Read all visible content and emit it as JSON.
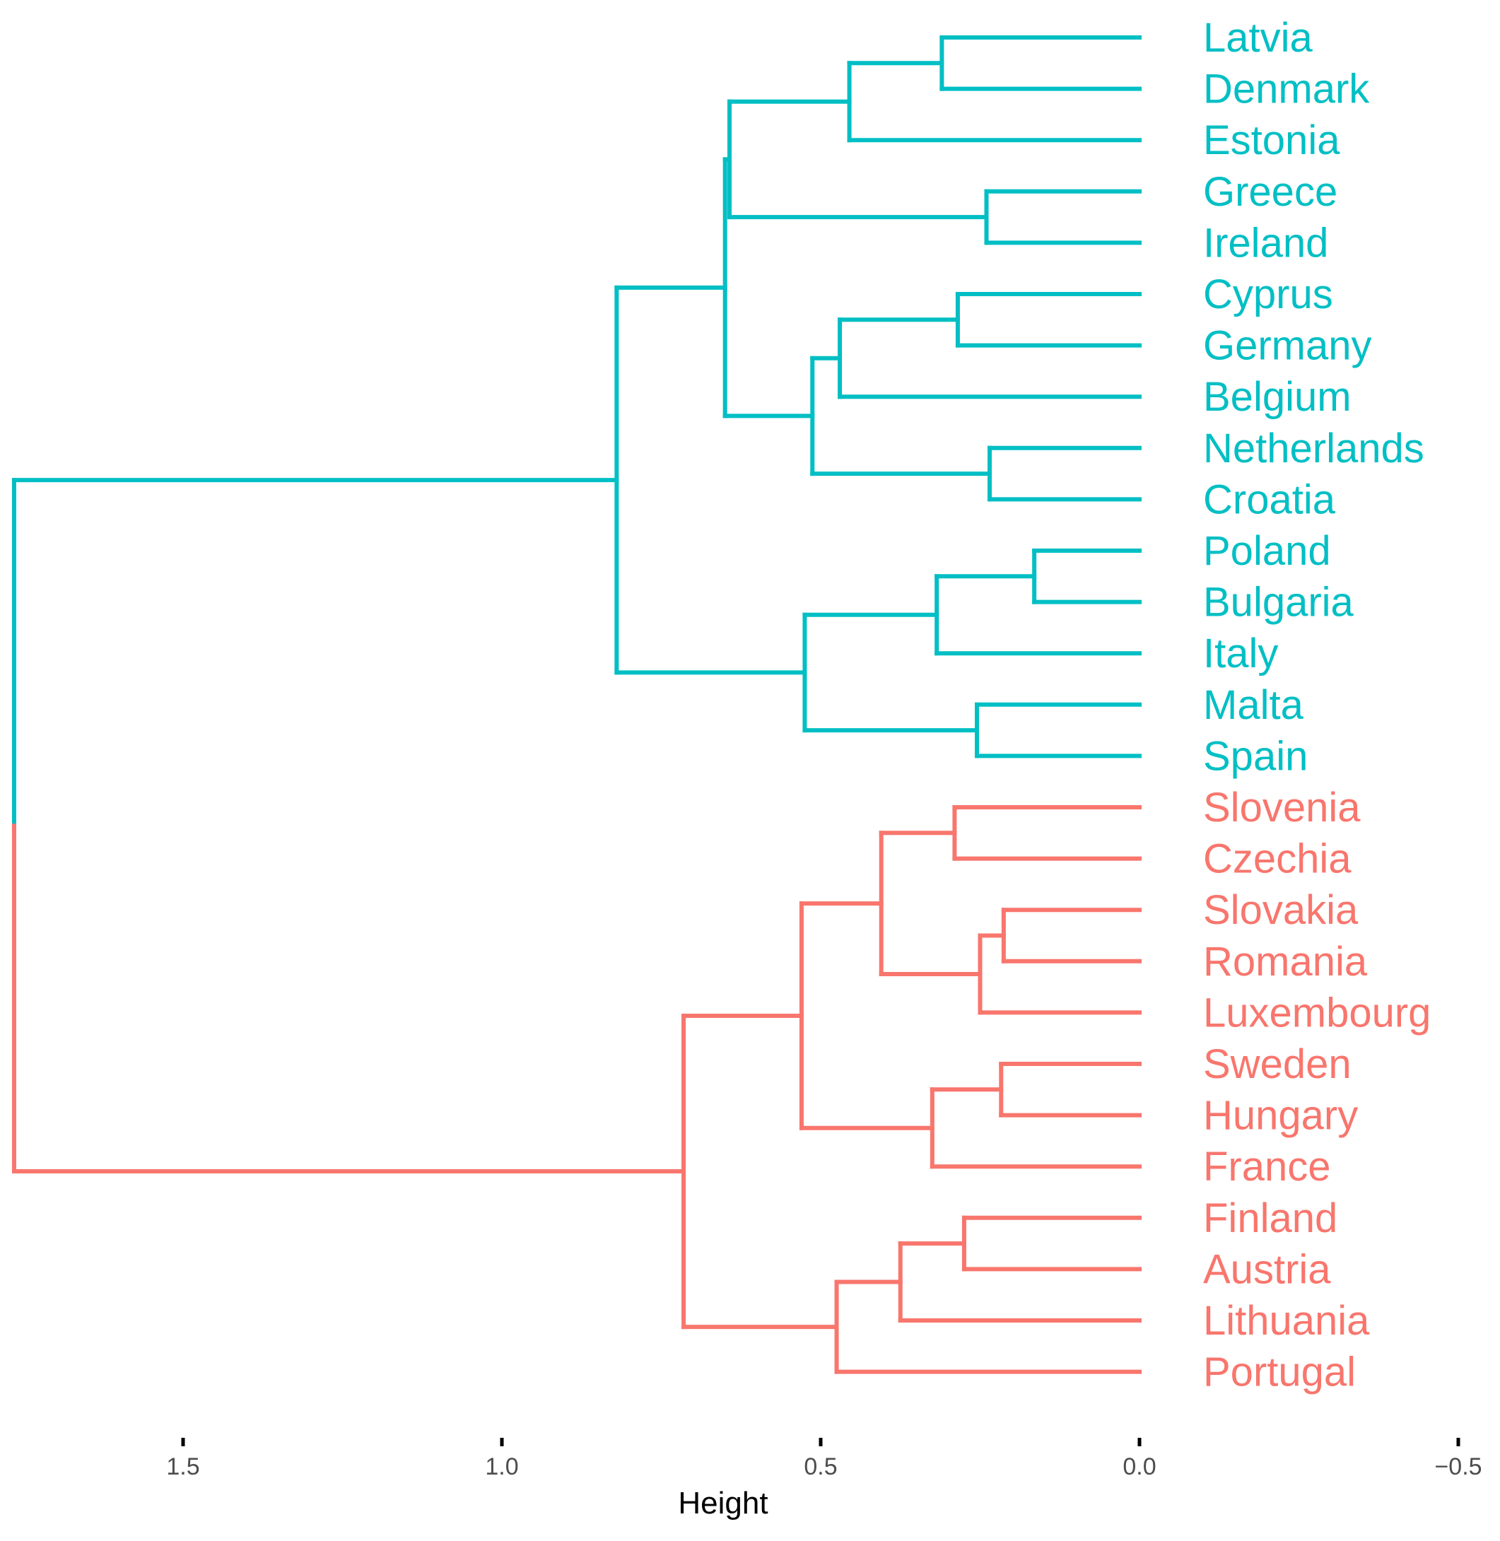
{
  "chart_data": {
    "type": "dendrogram",
    "title": "",
    "xlabel": "Height",
    "ylabel": "",
    "xlim": [
      1.78,
      -0.5
    ],
    "x_ticks": [
      1.5,
      1.0,
      0.5,
      0.0,
      -0.5
    ],
    "x_tick_labels": [
      "1.5",
      "1.0",
      "0.5",
      "0.0",
      "−0.5"
    ],
    "grid": false,
    "cluster_colors": [
      "#00bfc4",
      "#f8766d"
    ],
    "leaves": [
      {
        "label": "Latvia",
        "cluster": 0
      },
      {
        "label": "Denmark",
        "cluster": 0
      },
      {
        "label": "Estonia",
        "cluster": 0
      },
      {
        "label": "Greece",
        "cluster": 0
      },
      {
        "label": "Ireland",
        "cluster": 0
      },
      {
        "label": "Cyprus",
        "cluster": 0
      },
      {
        "label": "Germany",
        "cluster": 0
      },
      {
        "label": "Belgium",
        "cluster": 0
      },
      {
        "label": "Netherlands",
        "cluster": 0
      },
      {
        "label": "Croatia",
        "cluster": 0
      },
      {
        "label": "Poland",
        "cluster": 0
      },
      {
        "label": "Bulgaria",
        "cluster": 0
      },
      {
        "label": "Italy",
        "cluster": 0
      },
      {
        "label": "Malta",
        "cluster": 0
      },
      {
        "label": "Spain",
        "cluster": 0
      },
      {
        "label": "Slovenia",
        "cluster": 1
      },
      {
        "label": "Czechia",
        "cluster": 1
      },
      {
        "label": "Slovakia",
        "cluster": 1
      },
      {
        "label": "Romania",
        "cluster": 1
      },
      {
        "label": "Luxembourg",
        "cluster": 1
      },
      {
        "label": "Sweden",
        "cluster": 1
      },
      {
        "label": "Hungary",
        "cluster": 1
      },
      {
        "label": "France",
        "cluster": 1
      },
      {
        "label": "Finland",
        "cluster": 1
      },
      {
        "label": "Austria",
        "cluster": 1
      },
      {
        "label": "Lithuania",
        "cluster": 1
      },
      {
        "label": "Portugal",
        "cluster": 1
      }
    ],
    "merges": [
      {
        "id": "m1",
        "left": 0,
        "right": 1,
        "height": 0.31
      },
      {
        "id": "m2",
        "left": "m1",
        "right": 2,
        "height": 0.455
      },
      {
        "id": "m3",
        "left": 3,
        "right": 4,
        "height": 0.24
      },
      {
        "id": "m4",
        "left": "m2",
        "right": "m3",
        "height": 0.643
      },
      {
        "id": "m5",
        "left": 5,
        "right": 6,
        "height": 0.285
      },
      {
        "id": "m6",
        "left": "m5",
        "right": 7,
        "height": 0.47
      },
      {
        "id": "m7",
        "left": 8,
        "right": 9,
        "height": 0.235
      },
      {
        "id": "m8",
        "left": "m6",
        "right": "m7",
        "height": 0.513
      },
      {
        "id": "m9",
        "left": "m4",
        "right": "m8",
        "height": 0.65
      },
      {
        "id": "m10",
        "left": 10,
        "right": 11,
        "height": 0.165
      },
      {
        "id": "m11",
        "left": "m10",
        "right": 12,
        "height": 0.318
      },
      {
        "id": "m12",
        "left": 13,
        "right": 14,
        "height": 0.255
      },
      {
        "id": "m13",
        "left": "m11",
        "right": "m12",
        "height": 0.525
      },
      {
        "id": "m14",
        "left": "m9",
        "right": "m13",
        "height": 0.82
      },
      {
        "id": "m15",
        "left": 15,
        "right": 16,
        "height": 0.29
      },
      {
        "id": "m16",
        "left": 17,
        "right": 18,
        "height": 0.213
      },
      {
        "id": "m17",
        "left": "m16",
        "right": 19,
        "height": 0.25
      },
      {
        "id": "m18",
        "left": "m15",
        "right": "m17",
        "height": 0.405
      },
      {
        "id": "m19",
        "left": 20,
        "right": 21,
        "height": 0.217
      },
      {
        "id": "m20",
        "left": "m19",
        "right": 22,
        "height": 0.325
      },
      {
        "id": "m21",
        "left": "m18",
        "right": "m20",
        "height": 0.53
      },
      {
        "id": "m22",
        "left": 23,
        "right": 24,
        "height": 0.275
      },
      {
        "id": "m23",
        "left": "m22",
        "right": 25,
        "height": 0.375
      },
      {
        "id": "m24",
        "left": "m23",
        "right": 26,
        "height": 0.475
      },
      {
        "id": "m25",
        "left": "m21",
        "right": "m24",
        "height": 0.715
      },
      {
        "id": "m26",
        "left": "m14",
        "right": "m25",
        "height": 1.765
      }
    ]
  }
}
